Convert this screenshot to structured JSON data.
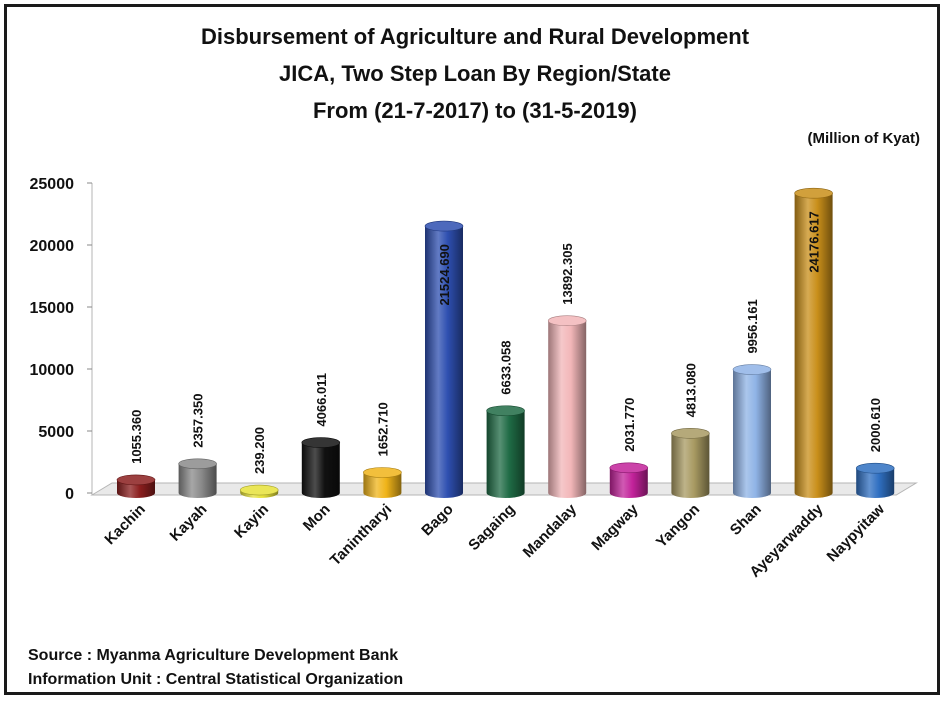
{
  "chart_data": {
    "type": "bar",
    "title_lines": [
      "Disbursement of Agriculture and Rural Development",
      "JICA, Two Step Loan By Region/State",
      "From (21-7-2017) to (31-5-2019)"
    ],
    "unit_label": "(Million of Kyat)",
    "categories": [
      "Kachin",
      "Kayah",
      "Kayin",
      "Mon",
      "Tanintharyi",
      "Bago",
      "Sagaing",
      "Mandalay",
      "Magway",
      "Yangon",
      "Shan",
      "Ayeyarwaddy",
      "Naypyitaw"
    ],
    "values": [
      1055.36,
      2357.35,
      239.2,
      4066.011,
      1652.71,
      21524.69,
      6633.058,
      13892.305,
      2031.77,
      4813.08,
      9956.161,
      24176.617,
      2000.61
    ],
    "value_labels": [
      "1055.360",
      "2357.350",
      "239.200",
      "4066.011",
      "1652.710",
      "21524.690",
      "6633.058",
      "13892.305",
      "2031.770",
      "4813.080",
      "9956.161",
      "24176.617",
      "2000.610"
    ],
    "bar_colors": [
      "#8b1e1e",
      "#8a8a8a",
      "#e6e23a",
      "#111111",
      "#f0b419",
      "#2e4fb0",
      "#1f6b45",
      "#f2b6b8",
      "#c2229a",
      "#a89a62",
      "#8fb3e6",
      "#c98f1a",
      "#2f6fc1"
    ],
    "y_ticks": [
      "0",
      "5000",
      "10000",
      "15000",
      "20000",
      "25000"
    ],
    "ylim": [
      0,
      25000
    ],
    "legend": "none"
  },
  "footer": {
    "source": "Source : Myanma Agriculture Development Bank",
    "info": "Information Unit : Central Statistical Organization"
  }
}
